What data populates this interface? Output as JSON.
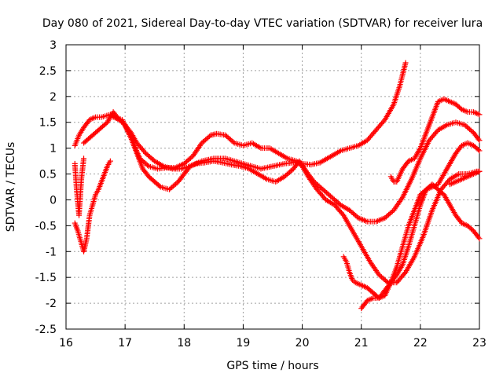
{
  "chart_data": {
    "type": "scatter",
    "title": "Day 080 of 2021, Sidereal Day-to-day VTEC variation (SDTVAR) for receiver lura",
    "xlabel": "GPS time / hours",
    "ylabel": "SDTVAR / TECUs",
    "xlim": [
      16,
      23
    ],
    "ylim": [
      -2.5,
      3
    ],
    "xticks": [
      "16",
      "17",
      "18",
      "19",
      "20",
      "21",
      "22",
      "23"
    ],
    "yticks": [
      "3",
      "2.5",
      "2",
      "1.5",
      "1",
      "0.5",
      "0",
      "-0.5",
      "-1",
      "-1.5",
      "-2",
      "-2.5"
    ],
    "grid": true,
    "marker": "+",
    "color": "#ff0000",
    "series": [
      {
        "name": "s1",
        "x": [
          16.15,
          16.22,
          16.3,
          16.4,
          16.5,
          16.6,
          16.75,
          16.9,
          17.0,
          17.1,
          17.2,
          17.35,
          17.5,
          17.65,
          17.8,
          17.95,
          18.1,
          18.3,
          18.5,
          18.7,
          18.85,
          19.0,
          19.15,
          19.3,
          19.5,
          19.7,
          19.85,
          20.0,
          20.15,
          20.3,
          20.5,
          20.65,
          20.8,
          20.95,
          21.1,
          21.25,
          21.4,
          21.55,
          21.65,
          21.75
        ],
        "y": [
          1.05,
          1.25,
          1.4,
          1.55,
          1.6,
          1.6,
          1.65,
          1.55,
          1.45,
          1.3,
          1.1,
          0.9,
          0.75,
          0.65,
          0.6,
          0.6,
          0.65,
          0.75,
          0.8,
          0.8,
          0.75,
          0.7,
          0.65,
          0.6,
          0.65,
          0.7,
          0.72,
          0.7,
          0.68,
          0.72,
          0.85,
          0.95,
          1.0,
          1.05,
          1.15,
          1.35,
          1.55,
          1.85,
          2.2,
          2.65
        ]
      },
      {
        "name": "s2",
        "x": [
          16.3,
          16.4,
          16.5,
          16.6,
          16.7,
          16.8,
          16.9,
          17.0,
          17.1,
          17.2,
          17.3,
          17.4,
          17.5,
          17.6,
          17.75,
          17.9,
          18.0,
          18.1,
          18.2,
          18.35,
          18.5,
          18.65,
          18.8,
          18.95,
          19.1,
          19.25,
          19.4,
          19.55,
          19.7,
          19.85,
          19.95,
          20.1,
          20.2,
          20.35,
          20.5,
          20.65,
          20.8,
          20.95,
          21.1,
          21.25,
          21.4,
          21.55,
          21.7,
          21.85,
          22.0,
          22.15,
          22.3,
          22.45,
          22.6,
          22.75,
          22.9,
          23.0
        ],
        "y": [
          1.1,
          1.2,
          1.3,
          1.4,
          1.5,
          1.7,
          1.55,
          1.45,
          1.2,
          0.9,
          0.6,
          0.45,
          0.35,
          0.25,
          0.2,
          0.35,
          0.5,
          0.65,
          0.7,
          0.72,
          0.75,
          0.72,
          0.68,
          0.65,
          0.6,
          0.5,
          0.4,
          0.35,
          0.45,
          0.6,
          0.75,
          0.5,
          0.35,
          0.2,
          0.05,
          -0.1,
          -0.2,
          -0.35,
          -0.42,
          -0.42,
          -0.35,
          -0.2,
          0.05,
          0.4,
          0.8,
          1.15,
          1.35,
          1.45,
          1.5,
          1.45,
          1.3,
          1.15
        ]
      },
      {
        "name": "s3",
        "x": [
          16.8,
          16.95,
          17.1,
          17.25,
          17.4,
          17.55,
          17.7,
          17.85,
          18.0,
          18.15,
          18.3,
          18.45,
          18.55,
          18.7,
          18.85,
          19.0,
          19.15,
          19.3,
          19.45,
          19.6,
          19.75,
          19.9,
          20.0,
          20.1,
          20.25,
          20.4,
          20.55,
          20.7,
          20.85,
          21.0,
          21.15,
          21.3,
          21.45,
          21.6,
          21.75,
          21.9,
          22.05,
          22.2,
          22.35,
          22.5,
          22.65,
          22.8,
          22.95,
          23.0
        ],
        "y": [
          1.6,
          1.55,
          1.2,
          0.8,
          0.65,
          0.6,
          0.62,
          0.62,
          0.7,
          0.85,
          1.1,
          1.25,
          1.28,
          1.25,
          1.1,
          1.05,
          1.1,
          1.0,
          1.0,
          0.9,
          0.8,
          0.75,
          0.65,
          0.45,
          0.2,
          0.0,
          -0.1,
          -0.3,
          -0.6,
          -0.9,
          -1.2,
          -1.45,
          -1.6,
          -1.6,
          -1.4,
          -1.1,
          -0.7,
          -0.2,
          0.2,
          0.4,
          0.5,
          0.5,
          0.55,
          0.55
        ]
      },
      {
        "name": "s4",
        "x": [
          20.7,
          20.75,
          20.8,
          20.85,
          20.9,
          21.0,
          21.1,
          21.2,
          21.3,
          21.4,
          21.5,
          21.6,
          21.7,
          21.8,
          21.9,
          22.0,
          22.1,
          22.2,
          22.3,
          22.4,
          22.5,
          22.6,
          22.7,
          22.8,
          22.9,
          23.0
        ],
        "y": [
          -1.1,
          -1.2,
          -1.4,
          -1.55,
          -1.6,
          -1.65,
          -1.7,
          -1.8,
          -1.9,
          -1.75,
          -1.6,
          -1.45,
          -1.25,
          -0.9,
          -0.5,
          -0.1,
          0.2,
          0.3,
          0.2,
          0.1,
          -0.1,
          -0.3,
          -0.45,
          -0.5,
          -0.6,
          -0.75
        ]
      },
      {
        "name": "s5",
        "x": [
          21.5,
          21.55,
          21.6,
          21.7,
          21.8,
          21.9,
          22.0,
          22.1,
          22.2,
          22.3,
          22.4,
          22.5,
          22.6,
          22.7,
          22.8,
          22.9,
          23.0
        ],
        "y": [
          0.45,
          0.35,
          0.35,
          0.6,
          0.75,
          0.8,
          1.0,
          1.3,
          1.6,
          1.9,
          1.95,
          1.9,
          1.85,
          1.75,
          1.7,
          1.7,
          1.65
        ]
      },
      {
        "name": "s6",
        "x": [
          21.0,
          21.1,
          21.2,
          21.3,
          21.4,
          21.5,
          21.6,
          21.7,
          21.8,
          21.9,
          22.0,
          22.1,
          22.2,
          22.3,
          22.4,
          22.5,
          22.6,
          22.7,
          22.8,
          22.9,
          23.0
        ],
        "y": [
          -2.1,
          -1.95,
          -1.9,
          -1.9,
          -1.85,
          -1.6,
          -1.3,
          -0.9,
          -0.5,
          -0.2,
          0.1,
          0.2,
          0.25,
          0.3,
          0.5,
          0.7,
          0.9,
          1.05,
          1.1,
          1.05,
          0.95
        ]
      },
      {
        "name": "s7",
        "x": [
          16.15,
          16.2,
          16.25,
          16.3,
          16.35,
          16.4,
          16.45,
          16.5,
          16.55,
          16.6,
          16.65,
          16.7,
          16.75
        ],
        "y": [
          -0.45,
          -0.6,
          -0.8,
          -1.0,
          -0.75,
          -0.3,
          -0.1,
          0.1,
          0.2,
          0.35,
          0.5,
          0.65,
          0.75
        ]
      },
      {
        "name": "s8",
        "x": [
          16.15,
          16.18,
          16.22,
          16.26,
          16.3
        ],
        "y": [
          0.7,
          0.2,
          -0.3,
          0.4,
          0.8
        ]
      },
      {
        "name": "s9",
        "x": [
          22.5,
          22.6,
          22.7,
          22.8,
          22.9,
          23.0
        ],
        "y": [
          0.3,
          0.35,
          0.4,
          0.45,
          0.5,
          0.55
        ]
      }
    ]
  }
}
